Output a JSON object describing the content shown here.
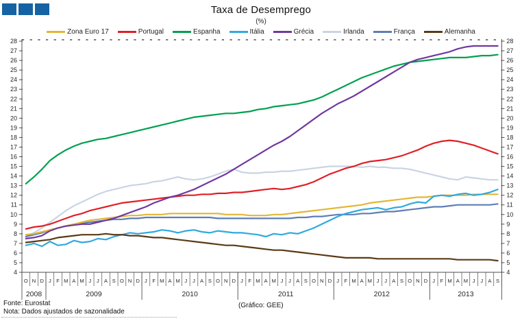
{
  "logo": {
    "square_color": "#1563A3",
    "square_count": 3
  },
  "header": {
    "title": "Taxa de Desemprego",
    "subtitle": "(%)"
  },
  "footer": {
    "source": "Fonte: Eurostat",
    "note": "Nota: Dados ajustados de sazonalidade",
    "credit": "(Gráfico: GEE)"
  },
  "chart_data": {
    "type": "line",
    "title": "Taxa de Desemprego",
    "unit": "(%)",
    "ylim": [
      4,
      28
    ],
    "ytick_step": 1,
    "grid": false,
    "legend_position": "top",
    "axis_color": "#4d4d4d",
    "text_color": "#262626",
    "x_months": [
      "O",
      "N",
      "D",
      "J",
      "F",
      "M",
      "A",
      "M",
      "J",
      "J",
      "A",
      "S",
      "O",
      "N",
      "D",
      "J",
      "F",
      "M",
      "A",
      "M",
      "J",
      "J",
      "A",
      "S",
      "O",
      "N",
      "D",
      "J",
      "F",
      "M",
      "A",
      "M",
      "J",
      "J",
      "A",
      "S",
      "O",
      "N",
      "D",
      "J",
      "F",
      "M",
      "A",
      "M",
      "J",
      "J",
      "A",
      "S",
      "O",
      "N",
      "D",
      "J",
      "F",
      "M",
      "A",
      "M",
      "J",
      "J",
      "A",
      "S"
    ],
    "x_years": [
      {
        "label": "2008",
        "months": 3
      },
      {
        "label": "2009",
        "months": 12
      },
      {
        "label": "2010",
        "months": 12
      },
      {
        "label": "2011",
        "months": 12
      },
      {
        "label": "2012",
        "months": 12
      },
      {
        "label": "2013",
        "months": 9
      }
    ],
    "draw_order": [
      5,
      6,
      0,
      3,
      1,
      2,
      7,
      4
    ],
    "series": [
      {
        "name": "Zona Euro 17",
        "color": "#E3B634",
        "values": [
          7.9,
          8.0,
          8.2,
          8.4,
          8.6,
          8.8,
          9.0,
          9.2,
          9.4,
          9.5,
          9.6,
          9.7,
          9.8,
          9.9,
          9.9,
          10.0,
          10.0,
          10.0,
          10.1,
          10.1,
          10.1,
          10.1,
          10.1,
          10.1,
          10.1,
          10.0,
          10.0,
          10.0,
          9.9,
          9.9,
          9.9,
          10.0,
          10.0,
          10.1,
          10.2,
          10.3,
          10.4,
          10.5,
          10.6,
          10.7,
          10.8,
          10.9,
          11.0,
          11.2,
          11.3,
          11.4,
          11.5,
          11.6,
          11.7,
          11.8,
          11.8,
          11.9,
          12.0,
          12.0,
          12.0,
          12.0,
          12.1,
          12.1,
          12.1,
          12.1
        ]
      },
      {
        "name": "Portugal",
        "color": "#E01F26",
        "values": [
          8.5,
          8.7,
          8.8,
          9.0,
          9.3,
          9.6,
          9.9,
          10.1,
          10.4,
          10.6,
          10.8,
          11.0,
          11.2,
          11.3,
          11.4,
          11.5,
          11.6,
          11.7,
          11.8,
          11.9,
          12.0,
          12.0,
          12.1,
          12.1,
          12.2,
          12.2,
          12.3,
          12.3,
          12.4,
          12.5,
          12.6,
          12.7,
          12.6,
          12.7,
          12.9,
          13.1,
          13.4,
          13.8,
          14.2,
          14.5,
          14.8,
          15.0,
          15.3,
          15.5,
          15.6,
          15.7,
          15.9,
          16.1,
          16.4,
          16.7,
          17.1,
          17.4,
          17.6,
          17.7,
          17.6,
          17.4,
          17.2,
          16.9,
          16.6,
          16.3
        ]
      },
      {
        "name": "Espanha",
        "color": "#00A04E",
        "values": [
          13.2,
          13.9,
          14.7,
          15.6,
          16.2,
          16.7,
          17.1,
          17.4,
          17.6,
          17.8,
          17.9,
          18.1,
          18.3,
          18.5,
          18.7,
          18.9,
          19.1,
          19.3,
          19.5,
          19.7,
          19.9,
          20.1,
          20.2,
          20.3,
          20.4,
          20.5,
          20.5,
          20.6,
          20.7,
          20.9,
          21.0,
          21.2,
          21.3,
          21.4,
          21.5,
          21.7,
          21.9,
          22.2,
          22.6,
          23.0,
          23.4,
          23.8,
          24.2,
          24.5,
          24.8,
          25.1,
          25.4,
          25.6,
          25.8,
          25.9,
          26.0,
          26.1,
          26.2,
          26.3,
          26.3,
          26.3,
          26.4,
          26.5,
          26.5,
          26.6
        ]
      },
      {
        "name": "Itália",
        "color": "#2FA9DF",
        "values": [
          6.8,
          7.0,
          6.7,
          7.2,
          6.8,
          6.9,
          7.3,
          7.1,
          7.2,
          7.5,
          7.4,
          7.7,
          7.9,
          8.1,
          8.0,
          8.1,
          8.2,
          8.4,
          8.3,
          8.1,
          8.3,
          8.4,
          8.2,
          8.1,
          8.3,
          8.2,
          8.1,
          8.1,
          8.0,
          7.9,
          7.7,
          8.0,
          7.9,
          8.1,
          8.0,
          8.3,
          8.6,
          9.0,
          9.4,
          9.8,
          10.1,
          10.3,
          10.5,
          10.6,
          10.7,
          10.5,
          10.7,
          10.8,
          11.1,
          11.3,
          11.2,
          11.9,
          12.0,
          11.9,
          12.1,
          12.2,
          12.0,
          12.1,
          12.3,
          12.6
        ]
      },
      {
        "name": "Grécia",
        "color": "#7038A0",
        "values": [
          7.5,
          7.6,
          7.8,
          8.3,
          8.6,
          8.8,
          8.9,
          9.0,
          9.0,
          9.2,
          9.4,
          9.6,
          9.9,
          10.2,
          10.5,
          10.8,
          11.2,
          11.5,
          11.8,
          12.0,
          12.3,
          12.6,
          13.0,
          13.4,
          13.8,
          14.2,
          14.7,
          15.2,
          15.7,
          16.2,
          16.7,
          17.2,
          17.6,
          18.1,
          18.7,
          19.3,
          19.9,
          20.5,
          21.0,
          21.5,
          21.9,
          22.3,
          22.8,
          23.3,
          23.8,
          24.3,
          24.8,
          25.3,
          25.8,
          26.1,
          26.3,
          26.5,
          26.7,
          26.9,
          27.2,
          27.4,
          27.5,
          27.5,
          27.5,
          27.5
        ]
      },
      {
        "name": "Irlanda",
        "color": "#C9D4E4",
        "values": [
          7.7,
          8.1,
          8.6,
          9.2,
          9.8,
          10.4,
          10.9,
          11.3,
          11.7,
          12.1,
          12.4,
          12.6,
          12.8,
          13.0,
          13.1,
          13.2,
          13.4,
          13.5,
          13.7,
          13.9,
          13.7,
          13.6,
          13.7,
          13.9,
          14.2,
          14.5,
          14.7,
          14.4,
          14.3,
          14.3,
          14.4,
          14.4,
          14.5,
          14.5,
          14.6,
          14.7,
          14.8,
          14.9,
          15.0,
          15.0,
          15.0,
          15.0,
          14.9,
          15.0,
          14.9,
          14.9,
          14.8,
          14.8,
          14.7,
          14.5,
          14.3,
          14.1,
          13.9,
          13.7,
          13.6,
          13.9,
          13.8,
          13.7,
          13.6,
          13.6
        ]
      },
      {
        "name": "França",
        "color": "#5D7EB4",
        "values": [
          7.7,
          7.9,
          8.1,
          8.4,
          8.6,
          8.8,
          9.0,
          9.1,
          9.2,
          9.3,
          9.4,
          9.5,
          9.5,
          9.6,
          9.6,
          9.7,
          9.7,
          9.7,
          9.7,
          9.7,
          9.7,
          9.7,
          9.7,
          9.7,
          9.6,
          9.6,
          9.6,
          9.6,
          9.6,
          9.6,
          9.6,
          9.6,
          9.6,
          9.6,
          9.7,
          9.7,
          9.8,
          9.8,
          9.9,
          10.0,
          10.0,
          10.0,
          10.1,
          10.1,
          10.2,
          10.3,
          10.3,
          10.4,
          10.5,
          10.6,
          10.7,
          10.8,
          10.8,
          10.9,
          11.0,
          11.0,
          11.0,
          11.0,
          11.0,
          11.1
        ]
      },
      {
        "name": "Alemanha",
        "color": "#5A3A16",
        "values": [
          7.1,
          7.2,
          7.3,
          7.4,
          7.6,
          7.7,
          7.8,
          7.9,
          7.9,
          7.9,
          8.0,
          7.9,
          7.9,
          7.8,
          7.8,
          7.7,
          7.6,
          7.6,
          7.5,
          7.4,
          7.3,
          7.2,
          7.1,
          7.0,
          6.9,
          6.8,
          6.8,
          6.7,
          6.6,
          6.5,
          6.4,
          6.3,
          6.3,
          6.2,
          6.1,
          6.0,
          5.9,
          5.8,
          5.7,
          5.6,
          5.5,
          5.5,
          5.5,
          5.5,
          5.4,
          5.4,
          5.4,
          5.4,
          5.4,
          5.4,
          5.4,
          5.4,
          5.4,
          5.4,
          5.3,
          5.3,
          5.3,
          5.3,
          5.3,
          5.2
        ]
      }
    ]
  }
}
